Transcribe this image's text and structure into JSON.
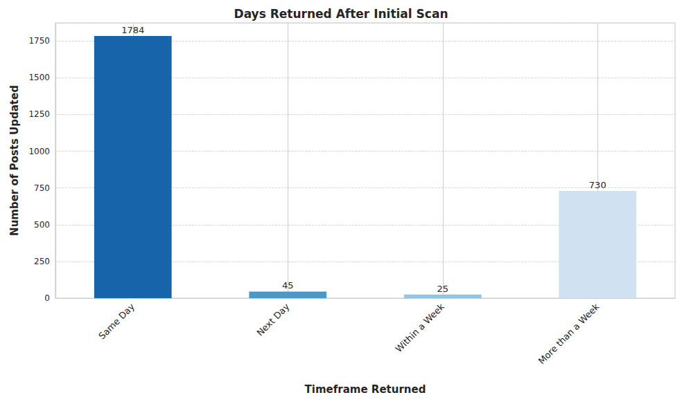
{
  "chart_data": {
    "type": "bar",
    "title": "Days Returned After Initial Scan",
    "x_label": "Timeframe Returned",
    "y_label": "Number of Posts Updated",
    "categories": [
      "Same Day",
      "Next Day",
      "Within a Week",
      "More than a Week"
    ],
    "values": [
      1784,
      45,
      25,
      730
    ],
    "colors": [
      "#1764ab",
      "#4a98c9",
      "#94c4df",
      "#d0e1f2"
    ],
    "ylim": [
      0,
      1873
    ],
    "yticks": [
      0,
      250,
      500,
      750,
      1000,
      1250,
      1500,
      1750
    ],
    "grid": true,
    "data_labels": true
  }
}
